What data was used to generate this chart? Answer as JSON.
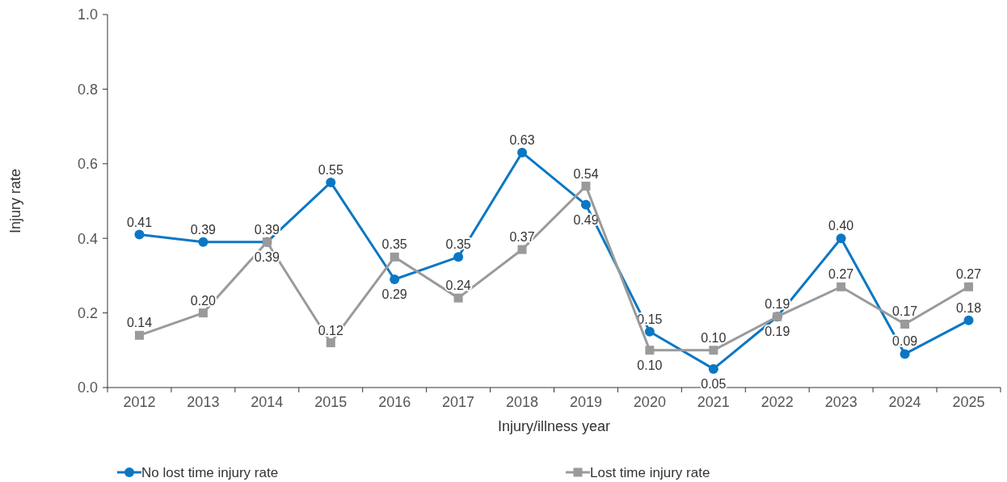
{
  "chart_data": {
    "type": "line",
    "xlabel": "Injury/illness year",
    "ylabel": "Injury rate",
    "categories": [
      "2012",
      "2013",
      "2014",
      "2015",
      "2016",
      "2017",
      "2018",
      "2019",
      "2020",
      "2021",
      "2022",
      "2023",
      "2024",
      "2025"
    ],
    "series": [
      {
        "name": "No lost time injury rate",
        "color": "#0b77c3",
        "marker": "circle",
        "values": [
          0.41,
          0.39,
          0.39,
          0.55,
          0.29,
          0.35,
          0.63,
          0.49,
          0.15,
          0.05,
          0.19,
          0.4,
          0.09,
          0.18
        ],
        "value_labels": [
          "0.41",
          "0.39",
          "0.39",
          "0.55",
          "0.29",
          "0.35",
          "0.63",
          "0.49",
          "0.15",
          "0.05",
          "0.19",
          "0.40",
          "0.09",
          "0.18"
        ]
      },
      {
        "name": "Lost time injury rate",
        "color": "#9a9a9a",
        "marker": "square",
        "values": [
          0.14,
          0.2,
          0.39,
          0.12,
          0.35,
          0.24,
          0.37,
          0.54,
          0.1,
          0.1,
          0.19,
          0.27,
          0.17,
          0.27
        ],
        "value_labels": [
          "0.14",
          "0.20",
          "0.39",
          "0.12",
          "0.35",
          "0.24",
          "0.37",
          "0.54",
          "0.10",
          "0.10",
          "0.19",
          "0.27",
          "0.17",
          "0.27"
        ]
      }
    ],
    "ylim": [
      0,
      1
    ],
    "yticks": [
      {
        "value": 0,
        "label": "0.0"
      },
      {
        "value": 0.2,
        "label": "0.2"
      },
      {
        "value": 0.4,
        "label": "0.4"
      },
      {
        "value": 0.6,
        "label": "0.6"
      },
      {
        "value": 0.8,
        "label": "0.8"
      },
      {
        "value": 1,
        "label": "1.0"
      }
    ],
    "legend": "bottom",
    "line_style": "solid"
  }
}
